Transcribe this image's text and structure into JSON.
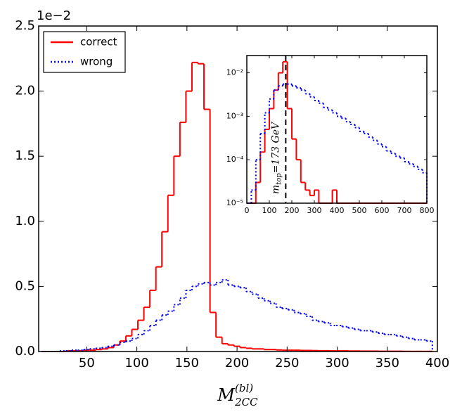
{
  "chart_data": [
    {
      "type": "histogram",
      "y_offset_label": "1e−2",
      "xlabel": {
        "main": "M",
        "superscript": "(bl)",
        "subscript": "2CC"
      },
      "bins": [
        5,
        11,
        17,
        23,
        29,
        35,
        41,
        47,
        53,
        59,
        65,
        71,
        77,
        83,
        89,
        95,
        101,
        107,
        113,
        119,
        125,
        131,
        137,
        143,
        149,
        155,
        161,
        167,
        173,
        179,
        185,
        191,
        197,
        203,
        209,
        215,
        221,
        227,
        233,
        239,
        245,
        251,
        257,
        263,
        269,
        275,
        281,
        287,
        293,
        299,
        305,
        311,
        317,
        323,
        329,
        335,
        341,
        347,
        353,
        359,
        365,
        371,
        377,
        383,
        389,
        395
      ],
      "series": [
        {
          "name": "correct",
          "color": "#ff0000",
          "style": "solid",
          "values": [
            0,
            0,
            0,
            0,
            0.005,
            0.005,
            0.005,
            0.01,
            0.01,
            0.015,
            0.02,
            0.03,
            0.05,
            0.08,
            0.12,
            0.17,
            0.24,
            0.34,
            0.47,
            0.65,
            0.92,
            1.2,
            1.5,
            1.76,
            2.0,
            2.22,
            2.21,
            1.86,
            0.3,
            0.11,
            0.06,
            0.05,
            0.04,
            0.03,
            0.025,
            0.02,
            0.02,
            0.015,
            0.015,
            0.012,
            0.01,
            0.01,
            0.01,
            0.008,
            0.008,
            0.007,
            0.006,
            0.006,
            0.005,
            0.005,
            0.005,
            0.004,
            0.004,
            0.003,
            0.003,
            0.003,
            0.002,
            0.002,
            0.002,
            0.002,
            0.001,
            0.001,
            0.001,
            0.001,
            0.001
          ]
        },
        {
          "name": "wrong",
          "color": "#0000ff",
          "style": "dotted",
          "values": [
            0,
            0,
            0,
            0.005,
            0.005,
            0.01,
            0.01,
            0.015,
            0.02,
            0.025,
            0.03,
            0.04,
            0.05,
            0.07,
            0.08,
            0.1,
            0.13,
            0.16,
            0.2,
            0.24,
            0.28,
            0.31,
            0.36,
            0.41,
            0.47,
            0.5,
            0.52,
            0.53,
            0.51,
            0.53,
            0.55,
            0.51,
            0.5,
            0.49,
            0.46,
            0.44,
            0.41,
            0.39,
            0.37,
            0.34,
            0.33,
            0.32,
            0.3,
            0.29,
            0.27,
            0.24,
            0.23,
            0.22,
            0.2,
            0.2,
            0.19,
            0.18,
            0.17,
            0.16,
            0.16,
            0.15,
            0.14,
            0.13,
            0.13,
            0.12,
            0.11,
            0.1,
            0.09,
            0.09,
            0.08
          ]
        }
      ],
      "xlim": [
        2,
        400
      ],
      "xticks": [
        50,
        100,
        150,
        200,
        250,
        300,
        350,
        400
      ],
      "ylim": [
        0,
        2.5
      ],
      "yticks": [
        {
          "value": 0,
          "label": "0.0"
        },
        0.5,
        {
          "value": 1,
          "label": "1.0"
        },
        1.5,
        {
          "value": 2,
          "label": "2.0"
        },
        2.5
      ],
      "legend": "upper left"
    },
    {
      "type": "histogram",
      "log_y": true,
      "bins": [
        0,
        20,
        40,
        60,
        80,
        100,
        120,
        140,
        160,
        180,
        200,
        220,
        240,
        260,
        280,
        300,
        320,
        340,
        360,
        380,
        400,
        420,
        440,
        460,
        480,
        500,
        520,
        540,
        560,
        580,
        600,
        620,
        640,
        660,
        680,
        700,
        720,
        740,
        760,
        780,
        800
      ],
      "series": [
        {
          "name": "correct",
          "color": "#ff0000",
          "style": "solid",
          "values": [
            0,
            1e-05,
            3e-05,
            0.00015,
            0.0005,
            0.0015,
            0.004,
            0.01,
            0.018,
            0.0015,
            0.0003,
            0.0001,
            3e-05,
            2e-05,
            1.5e-05,
            2e-05,
            1e-05,
            1e-05,
            0,
            2e-05,
            1e-05,
            0,
            1e-05,
            0,
            0,
            0,
            0,
            0,
            0,
            0,
            0,
            0,
            0,
            0,
            0,
            0,
            0,
            0,
            0,
            0
          ]
        },
        {
          "name": "wrong",
          "color": "#0000ff",
          "style": "dotted",
          "values": [
            0,
            2e-05,
            0.0001,
            0.0004,
            0.0012,
            0.0025,
            0.004,
            0.005,
            0.0055,
            0.0055,
            0.005,
            0.0045,
            0.004,
            0.0033,
            0.0028,
            0.0023,
            0.002,
            0.0016,
            0.0014,
            0.0012,
            0.001,
            0.0009,
            0.00075,
            0.00065,
            0.00055,
            0.00045,
            0.0004,
            0.00033,
            0.00028,
            0.00023,
            0.0002,
            0.00016,
            0.00014,
            0.00012,
            0.00011,
            9e-05,
            8e-05,
            7e-05,
            6e-05,
            5e-05
          ]
        }
      ],
      "xlim": [
        0,
        800
      ],
      "xticks": [
        0,
        100,
        200,
        300,
        400,
        500,
        600,
        700,
        800
      ],
      "ylim": [
        1e-05,
        0.025
      ],
      "yticks": [
        {
          "value": 1e-05,
          "label": "10⁻⁵"
        },
        {
          "value": 0.0001,
          "label": "10⁻⁴"
        },
        {
          "value": 0.001,
          "label": "10⁻³"
        },
        {
          "value": 0.01,
          "label": "10⁻²"
        }
      ],
      "vline": {
        "x": 173,
        "label": {
          "main": "m",
          "subscript": "top",
          "rest": "=173 GeV"
        }
      }
    }
  ]
}
